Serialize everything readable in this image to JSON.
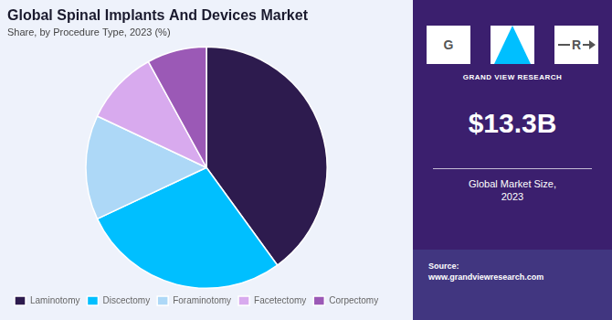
{
  "chart_data": {
    "type": "pie",
    "title": "Global Spinal Implants And Devices Market",
    "subtitle": "Share, by Procedure Type, 2023 (%)",
    "categories": [
      "Laminotomy",
      "Discectomy",
      "Foraminotomy",
      "Facetectomy",
      "Corpectomy"
    ],
    "values": [
      40,
      28,
      14,
      10,
      8
    ],
    "colors": [
      "#2d1b4e",
      "#00bfff",
      "#add8f7",
      "#d8aaee",
      "#9b59b6"
    ],
    "legend": "bottom",
    "annotations": [
      "G",
      "R",
      "GRAND VIEW RESEARCH",
      "$13.3B",
      "Global Market Size,\n2023",
      "Source:\nwww.grandviewresearch.com"
    ]
  }
}
